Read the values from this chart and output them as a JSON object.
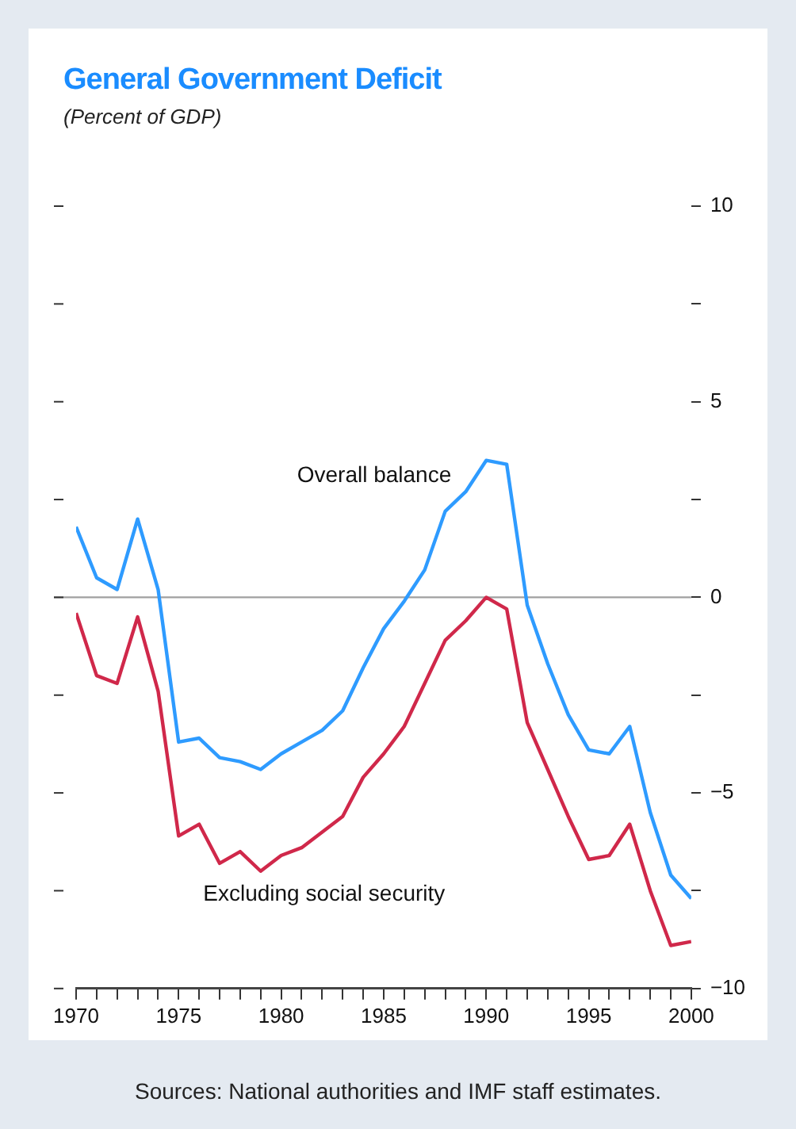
{
  "chart_data": {
    "type": "line",
    "title": "General Government Deficit",
    "subtitle": "(Percent of GDP)",
    "x": [
      1970,
      1971,
      1972,
      1973,
      1974,
      1975,
      1976,
      1977,
      1978,
      1979,
      1980,
      1981,
      1982,
      1983,
      1984,
      1985,
      1986,
      1987,
      1988,
      1989,
      1990,
      1991,
      1992,
      1993,
      1994,
      1995,
      1996,
      1997,
      1998,
      1999,
      2000
    ],
    "series": [
      {
        "name": "Overall balance",
        "color": "#2e9bff",
        "values": [
          1.8,
          0.5,
          0.2,
          2.0,
          0.2,
          -3.7,
          -3.6,
          -4.1,
          -4.2,
          -4.4,
          -4.0,
          -3.7,
          -3.4,
          -2.9,
          -1.8,
          -0.8,
          -0.1,
          0.7,
          2.2,
          2.7,
          3.5,
          3.4,
          -0.2,
          -1.7,
          -3.0,
          -3.9,
          -4.0,
          -3.3,
          -5.5,
          -7.1,
          -7.7
        ]
      },
      {
        "name": "Excluding social security",
        "color": "#d0284a",
        "values": [
          -0.4,
          -2.0,
          -2.2,
          -0.5,
          -2.4,
          -6.1,
          -5.8,
          -6.8,
          -6.5,
          -7.0,
          -6.6,
          -6.4,
          -6.0,
          -5.6,
          -4.6,
          -4.0,
          -3.3,
          -2.2,
          -1.1,
          -0.6,
          0.0,
          -0.3,
          -3.2,
          -4.4,
          -5.6,
          -6.7,
          -6.6,
          -5.8,
          -7.5,
          -8.9,
          -8.8
        ]
      }
    ],
    "xlim": [
      1970,
      2000
    ],
    "xticks": [
      1970,
      {
        "value": 1971,
        "label": null
      },
      {
        "value": 1972,
        "label": null
      },
      {
        "value": 1973,
        "label": null
      },
      {
        "value": 1974,
        "label": null
      },
      1975,
      {
        "value": 1976,
        "label": null
      },
      {
        "value": 1977,
        "label": null
      },
      {
        "value": 1978,
        "label": null
      },
      {
        "value": 1979,
        "label": null
      },
      1980,
      {
        "value": 1981,
        "label": null
      },
      {
        "value": 1982,
        "label": null
      },
      {
        "value": 1983,
        "label": null
      },
      {
        "value": 1984,
        "label": null
      },
      1985,
      {
        "value": 1986,
        "label": null
      },
      {
        "value": 1987,
        "label": null
      },
      {
        "value": 1988,
        "label": null
      },
      {
        "value": 1989,
        "label": null
      },
      1990,
      {
        "value": 1991,
        "label": null
      },
      {
        "value": 1992,
        "label": null
      },
      {
        "value": 1993,
        "label": null
      },
      {
        "value": 1994,
        "label": null
      },
      1995,
      {
        "value": 1996,
        "label": null
      },
      {
        "value": 1997,
        "label": null
      },
      {
        "value": 1998,
        "label": null
      },
      {
        "value": 1999,
        "label": null
      },
      2000
    ],
    "ylim": [
      -10,
      10
    ],
    "yticks": [
      {
        "value": -10,
        "label": "−10"
      },
      {
        "value": -7.5,
        "label": null
      },
      {
        "value": -5,
        "label": "−5"
      },
      {
        "value": -2.5,
        "label": null
      },
      0,
      {
        "value": 2.5,
        "label": null
      },
      5,
      {
        "value": 7.5,
        "label": null
      },
      10
    ],
    "ref_lines": [
      {
        "axis": "y",
        "value": 0,
        "color": "#a0a0a0"
      }
    ],
    "grid": false,
    "legend": false,
    "marker": "none",
    "line_style": "solid",
    "annotations": [
      "Sources: National authorities and IMF staff estimates."
    ]
  }
}
